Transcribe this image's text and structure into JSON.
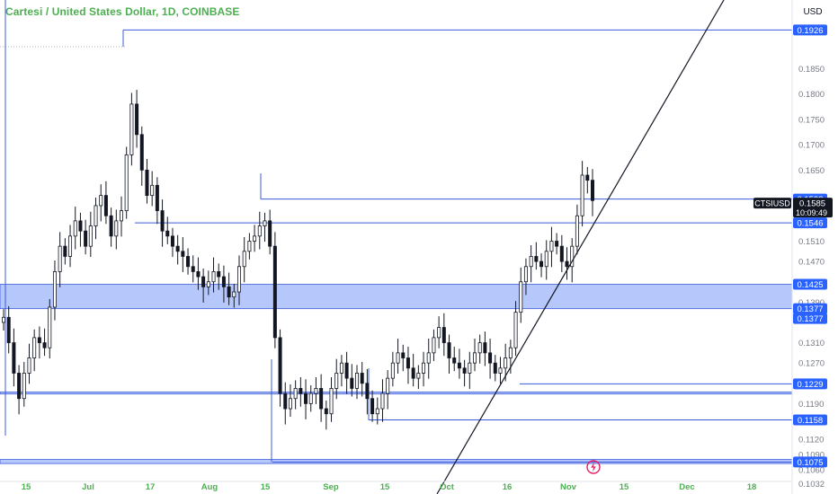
{
  "header": {
    "title": "Cartesi / United States Dollar, 1D, COINBASE",
    "currency": "USD"
  },
  "price_panel": {
    "symbol": "CTSIUSD",
    "last_price": "0.1585",
    "countdown": "10:09:49"
  },
  "colors": {
    "title": "#4caf50",
    "level_line": "#3b5bdb",
    "zone_fill": "#a9bdfb",
    "label_bg": "#2962ff",
    "candle": "#131722",
    "axis_text": "#787b86",
    "x_axis_text": "#4caf50",
    "replay_icon": "#e91e63"
  },
  "chart_data": {
    "type": "candlestick",
    "title": "Cartesi / United States Dollar, 1D, COINBASE",
    "ylim": [
      0.1012,
      0.1985
    ],
    "y_ticks": [
      "0.1032",
      "0.1060",
      "0.1090",
      "0.1120",
      "0.1190",
      "0.1270",
      "0.1310",
      "0.1390",
      "0.1470",
      "0.1510",
      "0.1650",
      "0.1700",
      "0.1750",
      "0.1800",
      "0.1850",
      "0.1950"
    ],
    "x_ticks": [
      "15",
      "Jul",
      "17",
      "Aug",
      "15",
      "Sep",
      "15",
      "Oct",
      "16",
      "Nov",
      "15",
      "Dec",
      "18"
    ],
    "price_labels": [
      "0.1926",
      "0.1593",
      "0.1546",
      "0.1425",
      "0.1377",
      "0.1377",
      "0.1229",
      "0.1158",
      "0.1075"
    ],
    "current_price": 0.1585,
    "levels": [
      {
        "value": 0.1926,
        "label": "0.1926"
      },
      {
        "value": 0.1593,
        "label": "0.1593"
      },
      {
        "value": 0.1546,
        "label": "0.1546"
      },
      {
        "value": 0.1229,
        "label": "0.1229"
      },
      {
        "value": 0.1158,
        "label": "0.1158"
      },
      {
        "value": 0.1075,
        "label": "0.1075"
      }
    ],
    "zones": [
      {
        "high": 0.1425,
        "low": 0.1377,
        "labels": [
          "0.1425",
          "0.1377",
          "0.1377"
        ]
      },
      {
        "high": 0.1213,
        "low": 0.1209
      },
      {
        "high": 0.108,
        "low": 0.1072
      }
    ],
    "trendline": {
      "start": {
        "x": 486,
        "y": 0.1012
      },
      "end": {
        "x": 805,
        "y": 0.1985
      }
    },
    "closes": [
      0.136,
      0.131,
      0.125,
      0.12,
      0.125,
      0.128,
      0.132,
      0.131,
      0.13,
      0.138,
      0.145,
      0.15,
      0.148,
      0.152,
      0.155,
      0.153,
      0.15,
      0.154,
      0.158,
      0.16,
      0.156,
      0.152,
      0.155,
      0.157,
      0.168,
      0.178,
      0.172,
      0.165,
      0.16,
      0.162,
      0.157,
      0.153,
      0.152,
      0.15,
      0.149,
      0.148,
      0.146,
      0.145,
      0.144,
      0.142,
      0.143,
      0.145,
      0.144,
      0.142,
      0.14,
      0.141,
      0.146,
      0.149,
      0.151,
      0.152,
      0.154,
      0.155,
      0.15,
      0.132,
      0.121,
      0.118,
      0.12,
      0.122,
      0.121,
      0.119,
      0.121,
      0.122,
      0.118,
      0.117,
      0.122,
      0.125,
      0.127,
      0.124,
      0.122,
      0.125,
      0.123,
      0.12,
      0.117,
      0.118,
      0.121,
      0.124,
      0.127,
      0.129,
      0.128,
      0.126,
      0.124,
      0.125,
      0.127,
      0.129,
      0.132,
      0.134,
      0.131,
      0.128,
      0.127,
      0.126,
      0.125,
      0.127,
      0.129,
      0.131,
      0.129,
      0.127,
      0.125,
      0.126,
      0.128,
      0.13,
      0.137,
      0.143,
      0.146,
      0.148,
      0.147,
      0.146,
      0.149,
      0.151,
      0.15,
      0.147,
      0.146,
      0.15,
      0.156,
      0.164,
      0.163,
      0.159
    ]
  }
}
